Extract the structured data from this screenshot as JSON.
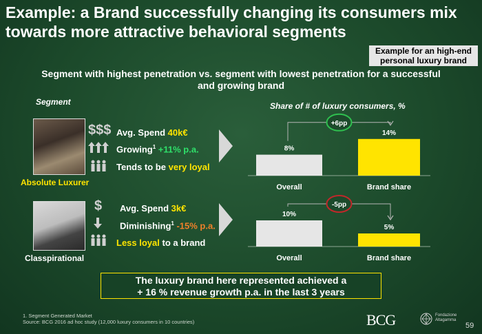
{
  "title": "Example: a Brand successfully changing its consumers mix towards more attractive behavioral segments",
  "example_box": "Example for an high-end personal luxury  brand",
  "subtitle": "Segment with highest penetration vs. segment with lowest penetration for a successful and growing brand",
  "segment_header": "Segment",
  "share_header": "Share of # of luxury consumers, %",
  "segments": [
    {
      "name": "Absolute Luxurer",
      "spend_icon": "$$$",
      "trend_icon": "triple-up-arrow-icon",
      "loyalty_icon": "people-group-icon",
      "spend_label": "Avg. Spend ",
      "spend_value": "40k€",
      "growth_label": "Growing",
      "growth_sup": "1",
      "growth_value": " +11% p.a.",
      "loyalty_prefix": "Tends to be ",
      "loyalty_value": "very loyal"
    },
    {
      "name": "Classpirational",
      "spend_icon": "$",
      "trend_icon": "down-arrow-icon",
      "loyalty_icon": "people-group-icon",
      "spend_label": "Avg. Spend ",
      "spend_value": "3k€",
      "growth_label": "Diminishing",
      "growth_sup": "1",
      "growth_value": " -15% p.a.",
      "loyalty_prefix": "Less loyal",
      "loyalty_value": " to a brand"
    }
  ],
  "chart_data": [
    {
      "type": "bar",
      "categories": [
        "Overall",
        "Brand share"
      ],
      "values": [
        8,
        14
      ],
      "data_labels": [
        "8%",
        "14%"
      ],
      "difference_label": "+6pp",
      "colors": [
        "#e6e6e6",
        "#ffe400"
      ],
      "difference_circle_color": "#2fbf4f"
    },
    {
      "type": "bar",
      "categories": [
        "Overall",
        "Brand share"
      ],
      "values": [
        10,
        5
      ],
      "data_labels": [
        "10%",
        "5%"
      ],
      "difference_label": "-5pp",
      "colors": [
        "#e6e6e6",
        "#ffe400"
      ],
      "difference_circle_color": "#c0282a"
    }
  ],
  "callout": {
    "line1": "The luxury brand here represented achieved a",
    "line2": "+ 16 % revenue growth p.a. in the last 3 years"
  },
  "footnotes": {
    "line1": "1. Segment Generated Market",
    "line2": "Source: BCG 2016 ad hoc study (12,000 luxury consumers in 10 countries)"
  },
  "logos": {
    "bcg": "BCG",
    "partner_line1": "Fondazione",
    "partner_line2": "Altagamma"
  },
  "page_number": "59"
}
